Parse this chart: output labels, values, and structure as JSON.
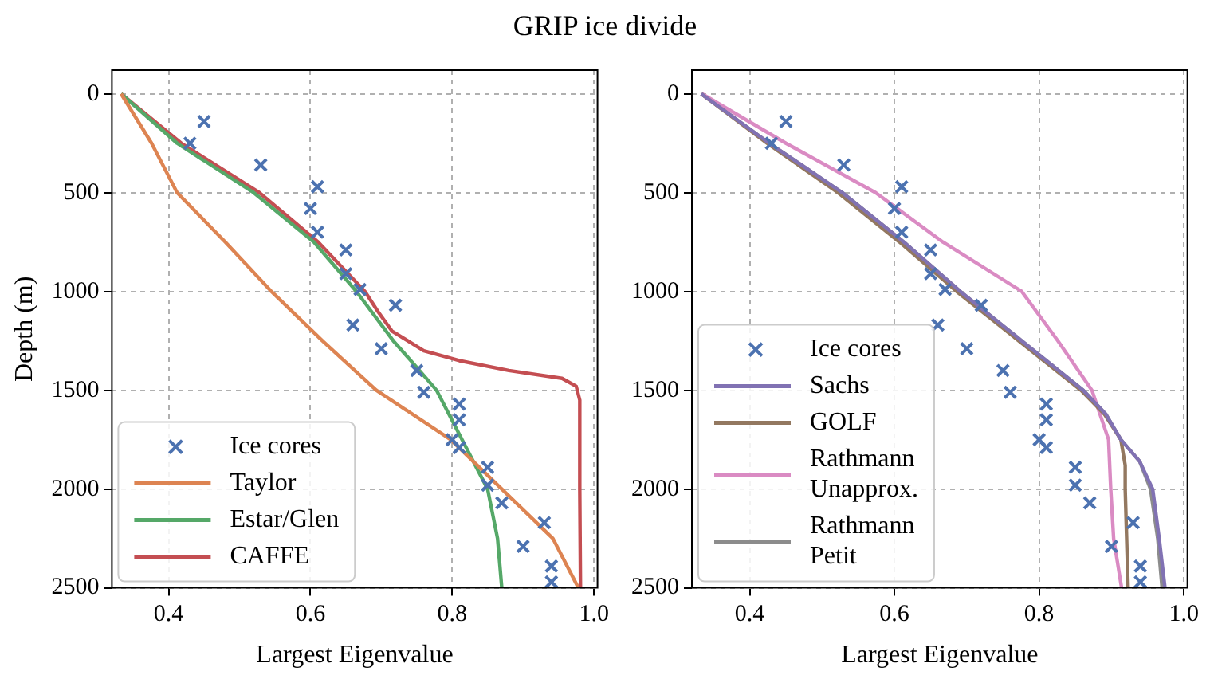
{
  "chart_data": [
    {
      "type": "line",
      "title": "GRIP ice divide",
      "xlabel": "Largest Eigenvalue",
      "ylabel": "Depth (m)",
      "xlim": [
        0.32,
        1.005
      ],
      "ylim": [
        2500,
        -120
      ],
      "xticks": [
        0.4,
        0.6,
        0.8,
        {
          "value": 1,
          "label": "1.0"
        }
      ],
      "yticks": [
        0,
        500,
        1000,
        1500,
        2000,
        2500
      ],
      "grid": true,
      "legend": "bottom left",
      "line_style": "solid",
      "series": [
        {
          "name": "Ice cores",
          "type": "scatter",
          "marker": "cross",
          "color": "#4c72b0",
          "x": [
            0.45,
            0.43,
            0.53,
            0.61,
            0.6,
            0.61,
            0.65,
            0.65,
            0.67,
            0.72,
            0.66,
            0.7,
            0.75,
            0.76,
            0.81,
            0.81,
            0.8,
            0.81,
            0.85,
            0.85,
            0.87,
            0.93,
            0.9,
            0.94,
            0.94
          ],
          "values": [
            140,
            250,
            360,
            470,
            580,
            700,
            790,
            910,
            990,
            1070,
            1170,
            1290,
            1400,
            1510,
            1570,
            1650,
            1750,
            1790,
            1890,
            1980,
            2070,
            2170,
            2290,
            2390,
            2470
          ]
        },
        {
          "name": "Taylor",
          "marker": "none",
          "color": "#dd8452",
          "x": [
            0.333,
            0.376,
            0.412,
            0.48,
            0.545,
            0.617,
            0.693,
            0.798,
            0.87,
            0.942,
            0.978
          ],
          "values": [
            0,
            250,
            500,
            750,
            1000,
            1250,
            1500,
            1750,
            2000,
            2250,
            2500
          ]
        },
        {
          "name": "Estar/Glen",
          "marker": "none",
          "color": "#55a868",
          "x": [
            0.333,
            0.412,
            0.52,
            0.605,
            0.665,
            0.717,
            0.749,
            0.778,
            0.814,
            0.85,
            0.864,
            0.87
          ],
          "values": [
            0,
            250,
            500,
            750,
            1000,
            1250,
            1380,
            1500,
            1750,
            2000,
            2250,
            2500
          ]
        },
        {
          "name": "CAFFE",
          "marker": "none",
          "color": "#c44e52",
          "x": [
            0.333,
            0.418,
            0.528,
            0.611,
            0.677,
            0.695,
            0.715,
            0.76,
            0.81,
            0.88,
            0.955,
            0.975,
            0.98,
            0.98,
            0.981
          ],
          "values": [
            0,
            250,
            500,
            750,
            1000,
            1100,
            1200,
            1300,
            1350,
            1400,
            1440,
            1480,
            1550,
            2000,
            2500
          ]
        }
      ]
    },
    {
      "type": "line",
      "xlabel": "Largest Eigenvalue",
      "xlim": [
        0.32,
        1.005
      ],
      "ylim": [
        2500,
        -120
      ],
      "xticks": [
        0.4,
        0.6,
        0.8,
        {
          "value": 1,
          "label": "1.0"
        }
      ],
      "yticks": [
        0,
        500,
        1000,
        1500,
        2000,
        2500
      ],
      "grid": true,
      "legend": "bottom left",
      "line_style": "solid",
      "series": [
        {
          "name": "Ice cores",
          "type": "scatter",
          "marker": "cross",
          "color": "#4c72b0",
          "x": [
            0.45,
            0.43,
            0.53,
            0.61,
            0.6,
            0.61,
            0.65,
            0.65,
            0.67,
            0.72,
            0.66,
            0.7,
            0.75,
            0.76,
            0.81,
            0.81,
            0.8,
            0.81,
            0.85,
            0.85,
            0.87,
            0.93,
            0.9,
            0.94,
            0.94
          ],
          "values": [
            140,
            250,
            360,
            470,
            580,
            700,
            790,
            910,
            990,
            1070,
            1170,
            1290,
            1400,
            1510,
            1570,
            1650,
            1750,
            1790,
            1890,
            1980,
            2070,
            2170,
            2290,
            2390,
            2470
          ]
        },
        {
          "name": "Sachs",
          "marker": "none",
          "color": "#8172b3",
          "x": [
            0.333,
            0.427,
            0.528,
            0.613,
            0.691,
            0.776,
            0.861,
            0.892,
            0.913,
            0.939,
            0.957,
            0.966,
            0.974
          ],
          "values": [
            0,
            250,
            500,
            750,
            1000,
            1250,
            1500,
            1620,
            1750,
            1860,
            2000,
            2250,
            2500
          ]
        },
        {
          "name": "GOLF",
          "marker": "none",
          "color": "#937860",
          "x": [
            0.333,
            0.424,
            0.522,
            0.607,
            0.686,
            0.772,
            0.858,
            0.89,
            0.913,
            0.919,
            0.919,
            0.921,
            0.923
          ],
          "values": [
            0,
            250,
            500,
            750,
            1000,
            1250,
            1500,
            1620,
            1750,
            1880,
            2000,
            2250,
            2500
          ]
        },
        {
          "name": "Rathmann\nUnapprox.",
          "marker": "none",
          "color": "#da8bc3",
          "x": [
            0.334,
            0.45,
            0.574,
            0.667,
            0.776,
            0.826,
            0.873,
            0.896,
            0.899,
            0.903,
            0.914
          ],
          "values": [
            0,
            250,
            500,
            750,
            1000,
            1250,
            1500,
            1750,
            2000,
            2250,
            2500
          ]
        },
        {
          "name": "Rathmann\nPetit",
          "marker": "none",
          "color": "#8c8c8c",
          "x": [
            0.333,
            0.427,
            0.528,
            0.613,
            0.691,
            0.776,
            0.861,
            0.892,
            0.913,
            0.939,
            0.954,
            0.964,
            0.97
          ],
          "values": [
            0,
            250,
            500,
            750,
            1000,
            1250,
            1500,
            1620,
            1750,
            1860,
            2000,
            2250,
            2500
          ]
        }
      ]
    }
  ]
}
